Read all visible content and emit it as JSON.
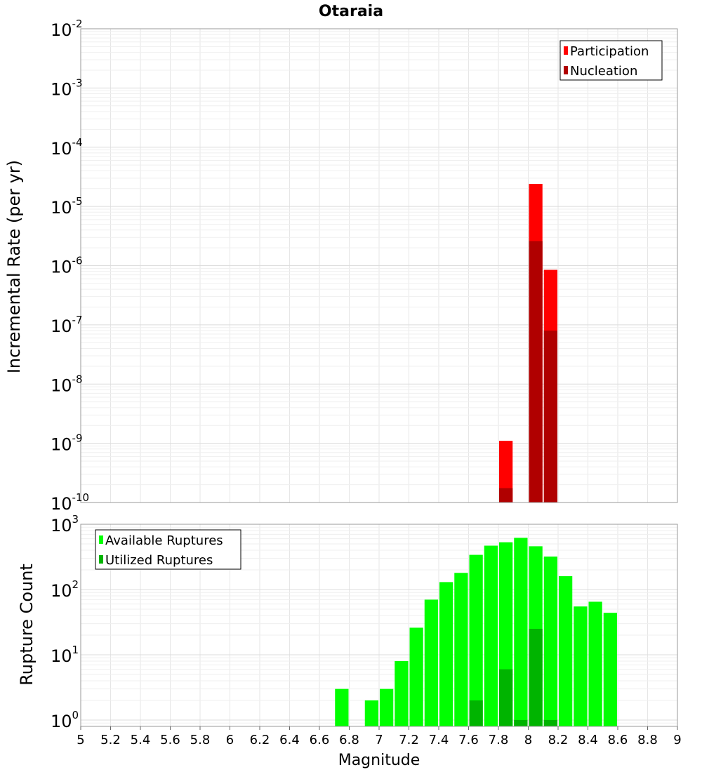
{
  "title": "Otaraia",
  "chart_data": [
    {
      "type": "bar",
      "ylabel": "Incremental Rate (per yr)",
      "yscale": "log",
      "ylim": [
        1e-10,
        0.01
      ],
      "xlim": [
        5,
        9
      ],
      "grid": true,
      "legend_position": "top-right",
      "bar_width": 0.1,
      "series": [
        {
          "name": "Participation",
          "color": "#ff0000",
          "points": [
            {
              "x": 7.85,
              "y": 1.1e-09
            },
            {
              "x": 8.05,
              "y": 2.4e-05
            },
            {
              "x": 8.15,
              "y": 8.5e-07
            }
          ]
        },
        {
          "name": "Nucleation",
          "color": "#b00000",
          "points": [
            {
              "x": 7.85,
              "y": 1.75e-10
            },
            {
              "x": 8.05,
              "y": 2.6e-06
            },
            {
              "x": 8.15,
              "y": 8e-08
            }
          ]
        }
      ],
      "ytick_labels": [
        {
          "base": "10",
          "exp": "-2"
        },
        {
          "base": "10",
          "exp": "-3"
        },
        {
          "base": "10",
          "exp": "-4"
        },
        {
          "base": "10",
          "exp": "-5"
        },
        {
          "base": "10",
          "exp": "-6"
        },
        {
          "base": "10",
          "exp": "-7"
        },
        {
          "base": "10",
          "exp": "-8"
        },
        {
          "base": "10",
          "exp": "-9"
        },
        {
          "base": "10",
          "exp": "-10"
        }
      ]
    },
    {
      "type": "bar",
      "ylabel": "Rupture Count",
      "xlabel": "Magnitude",
      "yscale": "log",
      "ylim": [
        0.8,
        1000
      ],
      "xlim": [
        5,
        9
      ],
      "grid": true,
      "legend_position": "top-left",
      "bar_width": 0.1,
      "series": [
        {
          "name": "Available Ruptures",
          "color": "#00ff00",
          "points": [
            {
              "x": 6.75,
              "y": 3
            },
            {
              "x": 6.95,
              "y": 2
            },
            {
              "x": 7.05,
              "y": 3
            },
            {
              "x": 7.15,
              "y": 8
            },
            {
              "x": 7.25,
              "y": 26
            },
            {
              "x": 7.35,
              "y": 70
            },
            {
              "x": 7.45,
              "y": 130
            },
            {
              "x": 7.55,
              "y": 180
            },
            {
              "x": 7.65,
              "y": 340
            },
            {
              "x": 7.75,
              "y": 470
            },
            {
              "x": 7.85,
              "y": 530
            },
            {
              "x": 7.95,
              "y": 620
            },
            {
              "x": 8.05,
              "y": 460
            },
            {
              "x": 8.15,
              "y": 320
            },
            {
              "x": 8.25,
              "y": 160
            },
            {
              "x": 8.35,
              "y": 55
            },
            {
              "x": 8.45,
              "y": 65
            },
            {
              "x": 8.55,
              "y": 44
            }
          ]
        },
        {
          "name": "Utilized Ruptures",
          "color": "#00b400",
          "points": [
            {
              "x": 7.65,
              "y": 2
            },
            {
              "x": 7.85,
              "y": 6
            },
            {
              "x": 7.95,
              "y": 1
            },
            {
              "x": 8.05,
              "y": 25
            },
            {
              "x": 8.15,
              "y": 1
            }
          ]
        }
      ],
      "ytick_labels": [
        {
          "base": "10",
          "exp": "3"
        },
        {
          "base": "10",
          "exp": "2"
        },
        {
          "base": "10",
          "exp": "1"
        },
        {
          "base": "10",
          "exp": "0"
        }
      ],
      "xticks": [
        5,
        5.2,
        5.4,
        5.6,
        5.8,
        6,
        6.2,
        6.4,
        6.6,
        6.8,
        7,
        7.2,
        7.4,
        7.6,
        7.8,
        8,
        8.2,
        8.4,
        8.6,
        8.8,
        9
      ]
    }
  ]
}
